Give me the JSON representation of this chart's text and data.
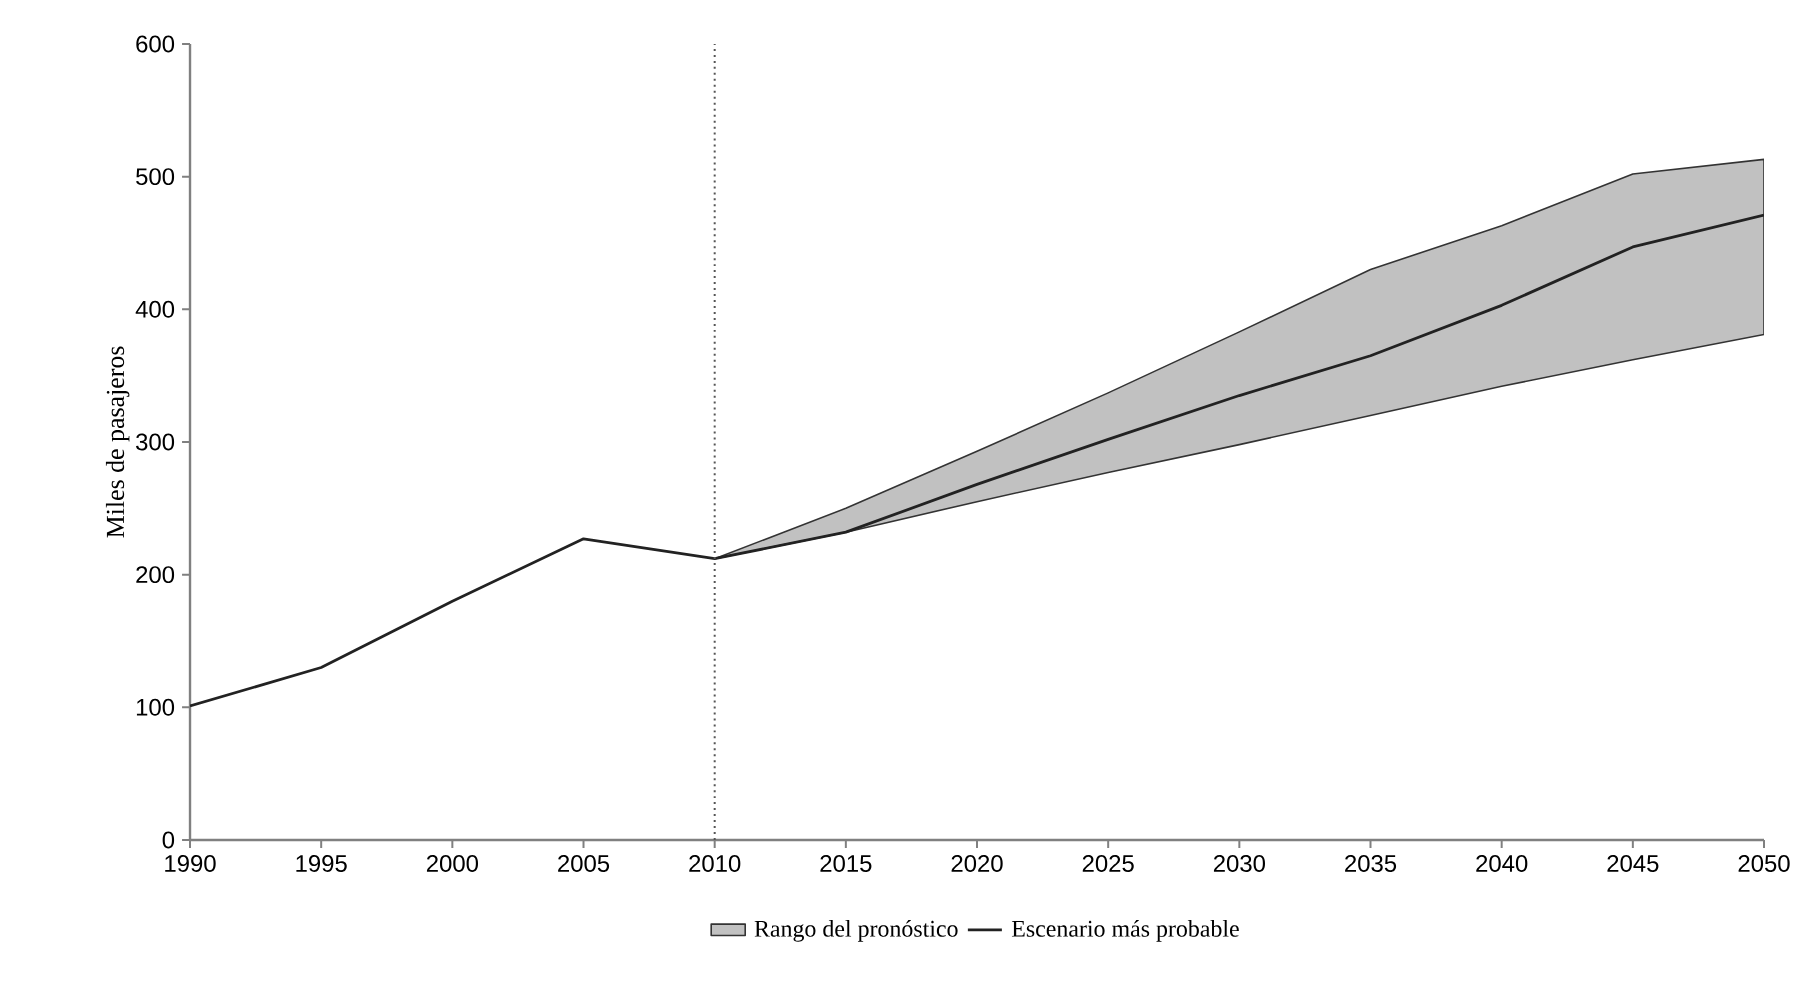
{
  "chart_data": {
    "type": "line",
    "ylabel": "Miles de pasajeros",
    "x": [
      1990,
      1995,
      2000,
      2005,
      2010,
      2015,
      2020,
      2025,
      2030,
      2035,
      2040,
      2045,
      2050
    ],
    "series": [
      {
        "name": "Escenario más probable",
        "color": "#222222",
        "line_style": "solid",
        "values": [
          101,
          130,
          180,
          227,
          212,
          232,
          268,
          302,
          335,
          365,
          403,
          447,
          471
        ],
        "lower": [
          null,
          null,
          null,
          null,
          212,
          232,
          255,
          277,
          298,
          320,
          342,
          362,
          381
        ],
        "upper": [
          null,
          null,
          null,
          null,
          212,
          250,
          293,
          337,
          383,
          430,
          463,
          502,
          513
        ]
      }
    ],
    "annotations": [
      "Rango del pronóstico"
    ],
    "xlim": [
      1990,
      2050
    ],
    "xticks": [
      1990,
      1995,
      2000,
      2005,
      2010,
      2015,
      2020,
      2025,
      2030,
      2035,
      2040,
      2045,
      2050
    ],
    "ylim": [
      0,
      600
    ],
    "yticks": [
      0,
      100,
      200,
      300,
      400,
      500,
      600
    ],
    "ref_lines": [
      {
        "axis": "x",
        "value": 2010,
        "color": "#555555",
        "line_style": "dotted"
      }
    ],
    "grid": false,
    "legend": "bottom",
    "marker": "none"
  }
}
